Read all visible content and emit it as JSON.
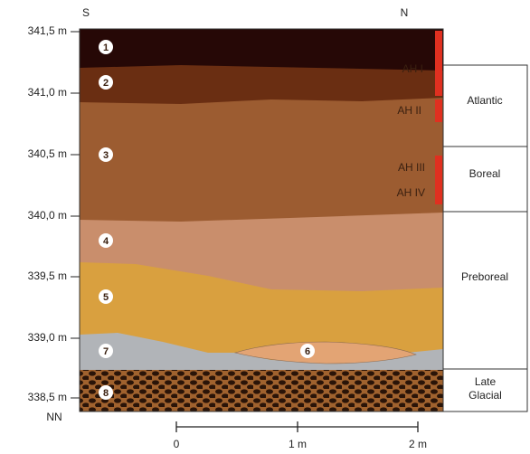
{
  "orientation": {
    "left": "S",
    "right": "N"
  },
  "elevations": [
    "341,5 m",
    "341,0 m",
    "340,5 m",
    "340,0 m",
    "339,5 m",
    "339,0 m",
    "338,5 m"
  ],
  "datum": "NN",
  "layers": [
    "1",
    "2",
    "3",
    "4",
    "5",
    "6",
    "7",
    "8"
  ],
  "horizons": [
    "AH I",
    "AH II",
    "AH III",
    "AH IV"
  ],
  "periods": [
    "Atlantic",
    "Boreal",
    "Preboreal",
    "Late Glacial"
  ],
  "scale": [
    "0",
    "1 m",
    "2 m"
  ]
}
